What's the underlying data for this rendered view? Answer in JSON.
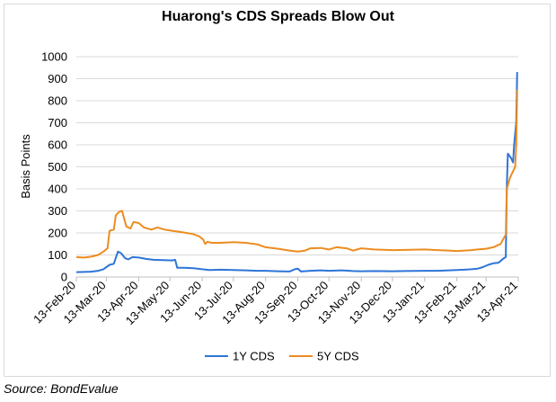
{
  "chart_data": {
    "type": "line",
    "title": "Huarong's CDS Spreads Blow Out",
    "ylabel": "Basis Points",
    "xlabel": "",
    "ylim": [
      0,
      1000
    ],
    "yticks": [
      0,
      100,
      200,
      300,
      400,
      500,
      600,
      700,
      800,
      900,
      1000
    ],
    "x_tick_labels": [
      "13-Feb-20",
      "13-Mar-20",
      "13-Apr-20",
      "13-May-20",
      "13-Jun-20",
      "13-Jul-20",
      "13-Aug-20",
      "13-Sep-20",
      "13-Oct-20",
      "13-Nov-20",
      "13-Dec-20",
      "13-Jan-21",
      "13-Feb-21",
      "13-Mar-21",
      "13-Apr-21"
    ],
    "grid": "horizontal",
    "legend_position": "bottom",
    "series": [
      {
        "name": "1Y CDS",
        "color": "#2e75d8",
        "points": [
          [
            "2020-02-13",
            22
          ],
          [
            "2020-02-20",
            23
          ],
          [
            "2020-02-27",
            24
          ],
          [
            "2020-03-05",
            28
          ],
          [
            "2020-03-10",
            35
          ],
          [
            "2020-03-16",
            55
          ],
          [
            "2020-03-20",
            60
          ],
          [
            "2020-03-24",
            115
          ],
          [
            "2020-03-27",
            108
          ],
          [
            "2020-03-31",
            85
          ],
          [
            "2020-04-03",
            80
          ],
          [
            "2020-04-07",
            90
          ],
          [
            "2020-04-13",
            88
          ],
          [
            "2020-04-20",
            82
          ],
          [
            "2020-04-27",
            78
          ],
          [
            "2020-05-04",
            77
          ],
          [
            "2020-05-10",
            76
          ],
          [
            "2020-05-15",
            75
          ],
          [
            "2020-05-18",
            78
          ],
          [
            "2020-05-20",
            42
          ],
          [
            "2020-05-27",
            42
          ],
          [
            "2020-06-05",
            40
          ],
          [
            "2020-06-13",
            35
          ],
          [
            "2020-06-20",
            32
          ],
          [
            "2020-07-01",
            33
          ],
          [
            "2020-07-13",
            32
          ],
          [
            "2020-07-25",
            30
          ],
          [
            "2020-08-05",
            28
          ],
          [
            "2020-08-13",
            28
          ],
          [
            "2020-08-25",
            26
          ],
          [
            "2020-09-05",
            25
          ],
          [
            "2020-09-10",
            35
          ],
          [
            "2020-09-13",
            38
          ],
          [
            "2020-09-16",
            25
          ],
          [
            "2020-09-25",
            28
          ],
          [
            "2020-10-05",
            30
          ],
          [
            "2020-10-13",
            28
          ],
          [
            "2020-10-25",
            30
          ],
          [
            "2020-11-05",
            27
          ],
          [
            "2020-11-13",
            26
          ],
          [
            "2020-11-25",
            27
          ],
          [
            "2020-12-13",
            26
          ],
          [
            "2020-12-25",
            27
          ],
          [
            "2021-01-13",
            28
          ],
          [
            "2021-01-25",
            28
          ],
          [
            "2021-02-05",
            30
          ],
          [
            "2021-02-13",
            32
          ],
          [
            "2021-02-20",
            33
          ],
          [
            "2021-02-27",
            35
          ],
          [
            "2021-03-05",
            38
          ],
          [
            "2021-03-10",
            45
          ],
          [
            "2021-03-15",
            55
          ],
          [
            "2021-03-20",
            62
          ],
          [
            "2021-03-25",
            65
          ],
          [
            "2021-03-30",
            85
          ],
          [
            "2021-04-01",
            90
          ],
          [
            "2021-04-02",
            420
          ],
          [
            "2021-04-03",
            560
          ],
          [
            "2021-04-06",
            540
          ],
          [
            "2021-04-08",
            520
          ],
          [
            "2021-04-09",
            600
          ],
          [
            "2021-04-11",
            700
          ],
          [
            "2021-04-12",
            930
          ]
        ]
      },
      {
        "name": "5Y CDS",
        "color": "#ed8c20",
        "points": [
          [
            "2020-02-13",
            90
          ],
          [
            "2020-02-20",
            88
          ],
          [
            "2020-02-27",
            92
          ],
          [
            "2020-03-05",
            100
          ],
          [
            "2020-03-10",
            115
          ],
          [
            "2020-03-14",
            130
          ],
          [
            "2020-03-16",
            210
          ],
          [
            "2020-03-20",
            215
          ],
          [
            "2020-03-22",
            280
          ],
          [
            "2020-03-25",
            295
          ],
          [
            "2020-03-28",
            300
          ],
          [
            "2020-04-01",
            230
          ],
          [
            "2020-04-05",
            220
          ],
          [
            "2020-04-08",
            250
          ],
          [
            "2020-04-13",
            245
          ],
          [
            "2020-04-18",
            225
          ],
          [
            "2020-04-25",
            215
          ],
          [
            "2020-05-01",
            225
          ],
          [
            "2020-05-08",
            215
          ],
          [
            "2020-05-15",
            210
          ],
          [
            "2020-05-22",
            205
          ],
          [
            "2020-05-29",
            200
          ],
          [
            "2020-06-04",
            195
          ],
          [
            "2020-06-10",
            185
          ],
          [
            "2020-06-14",
            170
          ],
          [
            "2020-06-16",
            150
          ],
          [
            "2020-06-18",
            160
          ],
          [
            "2020-06-22",
            155
          ],
          [
            "2020-07-01",
            155
          ],
          [
            "2020-07-13",
            158
          ],
          [
            "2020-07-25",
            155
          ],
          [
            "2020-08-05",
            148
          ],
          [
            "2020-08-13",
            135
          ],
          [
            "2020-08-25",
            128
          ],
          [
            "2020-09-05",
            120
          ],
          [
            "2020-09-13",
            115
          ],
          [
            "2020-09-20",
            120
          ],
          [
            "2020-09-25",
            130
          ],
          [
            "2020-10-05",
            132
          ],
          [
            "2020-10-13",
            125
          ],
          [
            "2020-10-20",
            135
          ],
          [
            "2020-10-30",
            130
          ],
          [
            "2020-11-05",
            120
          ],
          [
            "2020-11-13",
            130
          ],
          [
            "2020-11-25",
            125
          ],
          [
            "2020-12-13",
            122
          ],
          [
            "2020-12-25",
            123
          ],
          [
            "2021-01-13",
            125
          ],
          [
            "2021-01-25",
            122
          ],
          [
            "2021-02-05",
            120
          ],
          [
            "2021-02-13",
            118
          ],
          [
            "2021-02-20",
            120
          ],
          [
            "2021-02-27",
            122
          ],
          [
            "2021-03-05",
            125
          ],
          [
            "2021-03-13",
            128
          ],
          [
            "2021-03-20",
            135
          ],
          [
            "2021-03-27",
            150
          ],
          [
            "2021-03-31",
            185
          ],
          [
            "2021-04-01",
            190
          ],
          [
            "2021-04-02",
            400
          ],
          [
            "2021-04-05",
            450
          ],
          [
            "2021-04-08",
            480
          ],
          [
            "2021-04-10",
            500
          ],
          [
            "2021-04-11",
            600
          ],
          [
            "2021-04-12",
            850
          ]
        ]
      }
    ]
  },
  "footer": {
    "source": "Source: BondEvalue"
  }
}
